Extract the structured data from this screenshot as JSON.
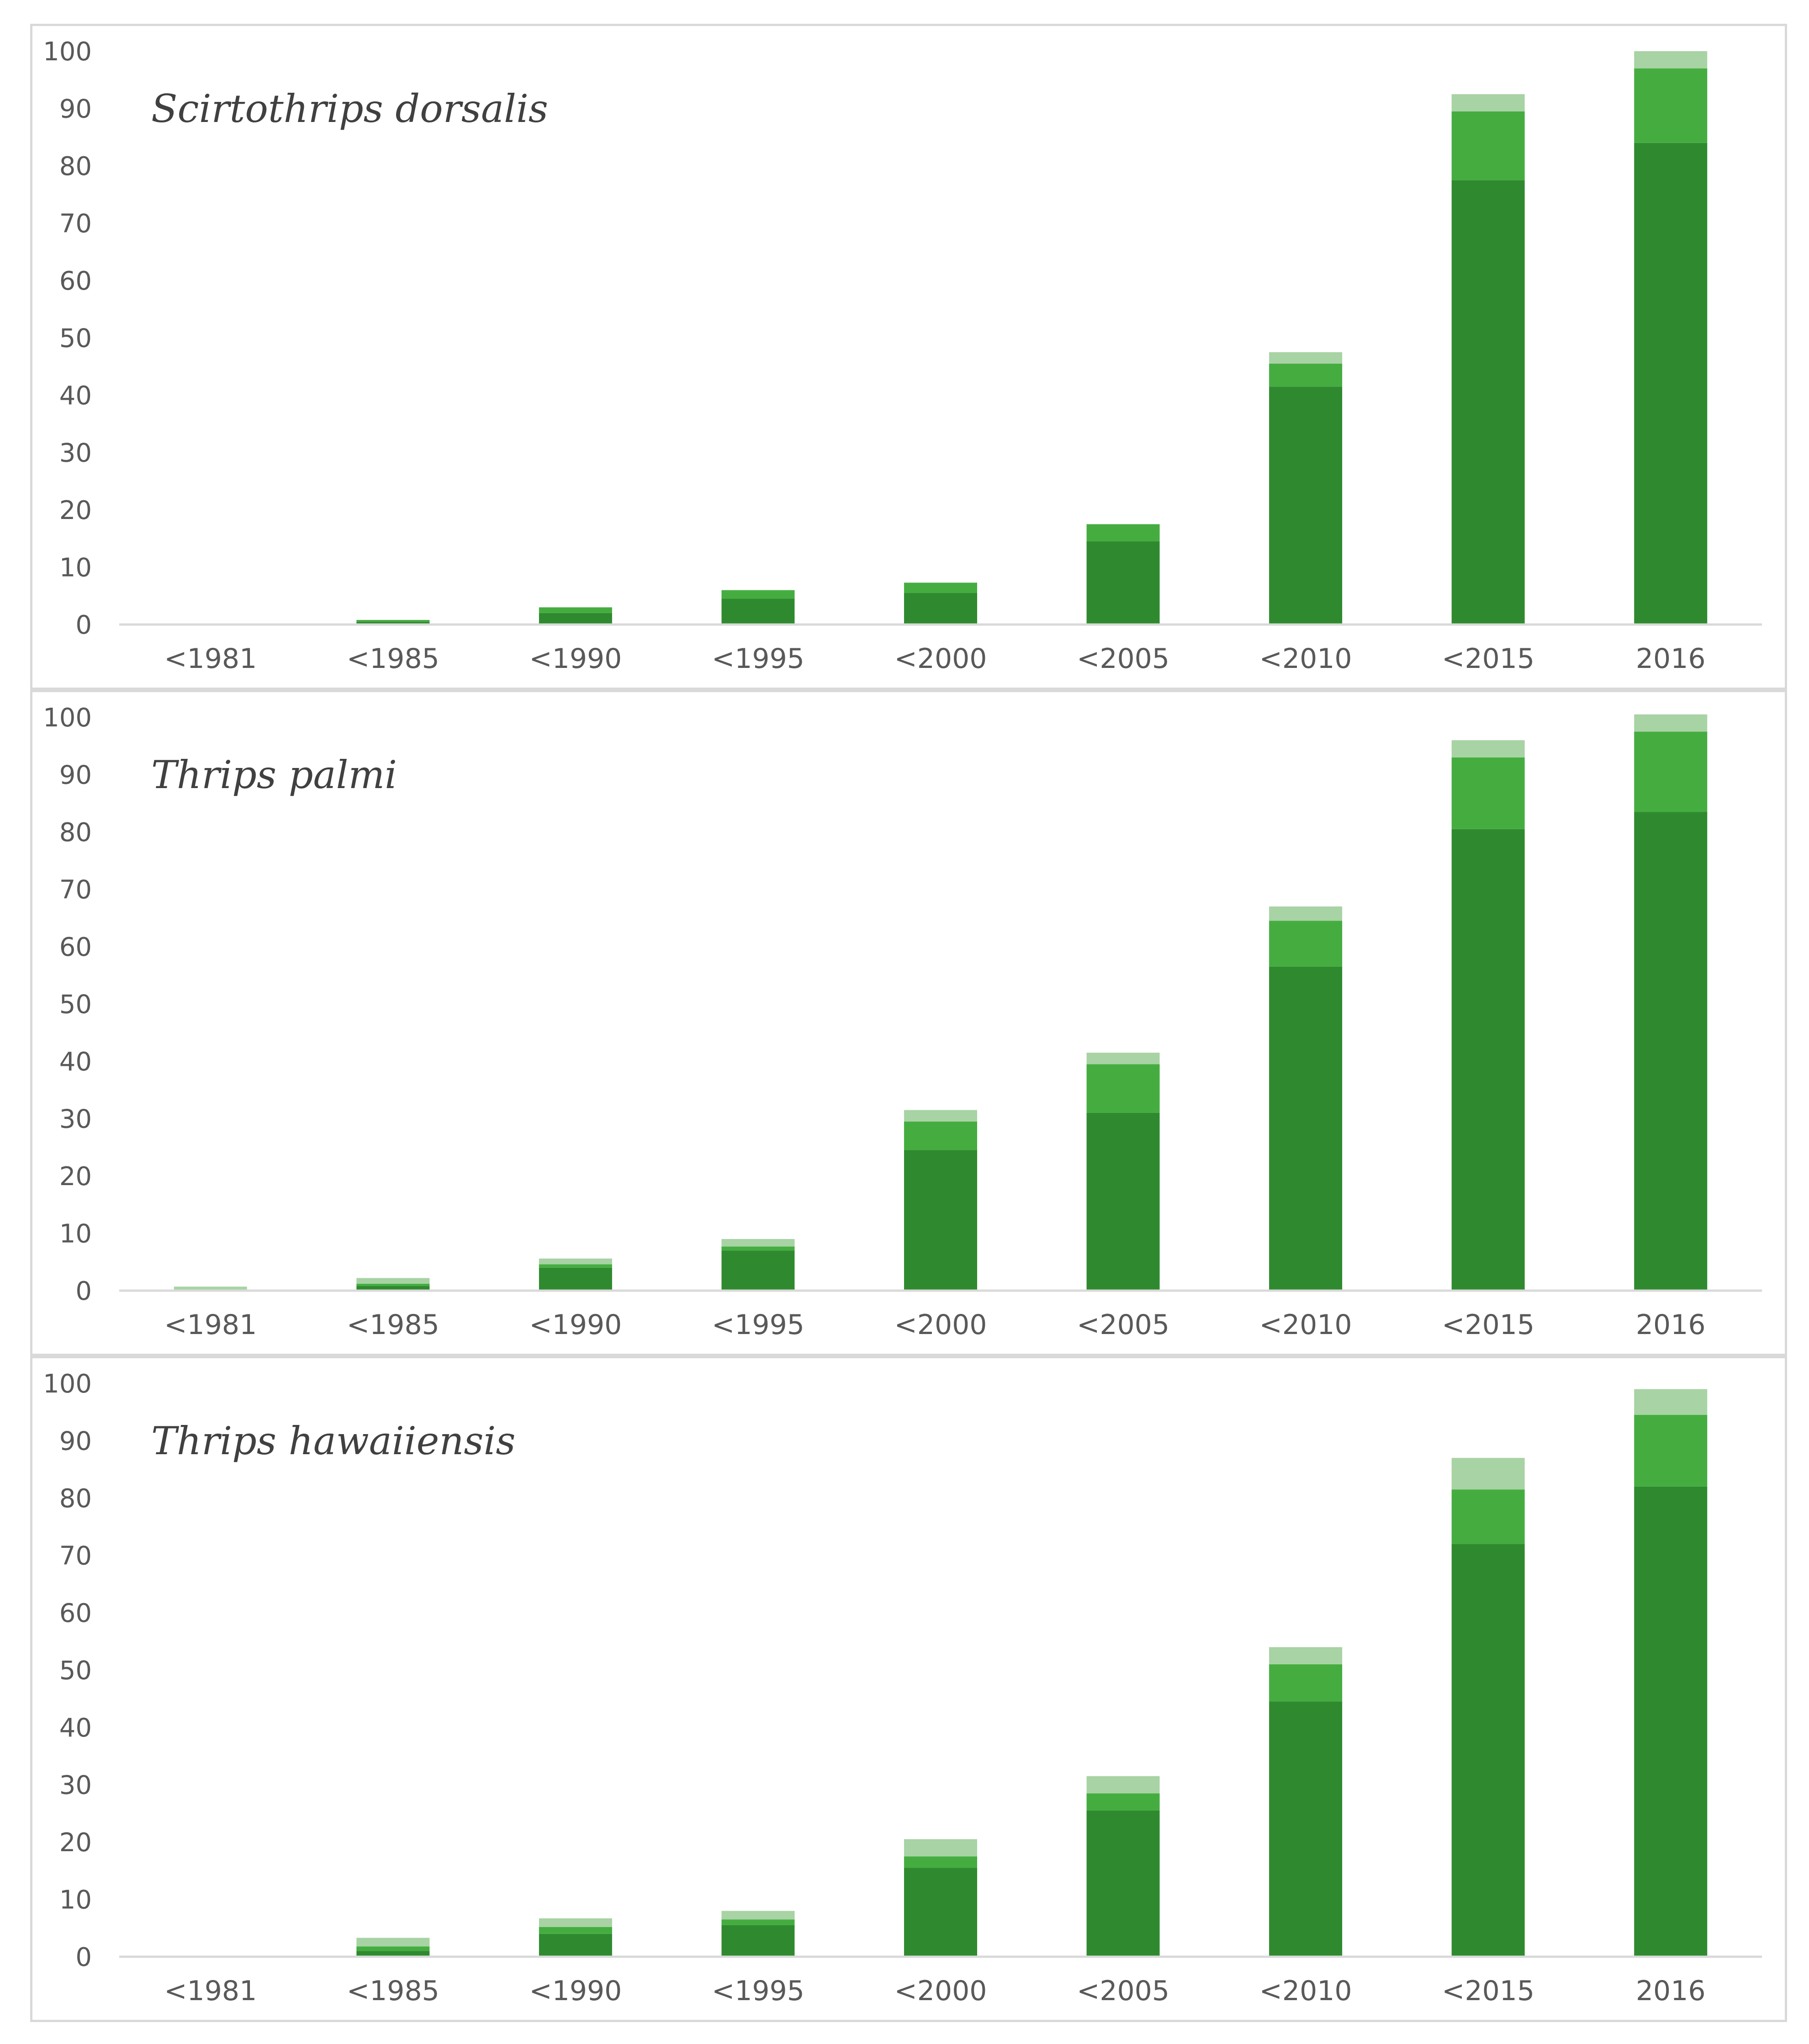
{
  "colors": {
    "dark": "#2f8a2f",
    "mid": "#45ad40",
    "light": "#a8d3a4",
    "axis": "#d9d9d9",
    "tick_text": "#595959",
    "title_text": "#404040"
  },
  "chart_data": [
    {
      "type": "bar",
      "stacked": true,
      "title": "Scirtothrips dorsalis",
      "categories": [
        "<1981",
        "<1985",
        "<1990",
        "<1995",
        "<2000",
        "<2005",
        "<2010",
        "<2015",
        "2016"
      ],
      "series": [
        {
          "name": "dark",
          "values": [
            0,
            0.5,
            2,
            4.5,
            5.5,
            14.5,
            41.5,
            77.5,
            84
          ]
        },
        {
          "name": "mid",
          "values": [
            0,
            0.3,
            1,
            1.5,
            1.8,
            3,
            4,
            12,
            13
          ]
        },
        {
          "name": "light",
          "values": [
            0,
            0,
            0,
            0,
            0,
            0,
            2,
            3,
            3
          ]
        }
      ],
      "yticks": [
        "0",
        "10",
        "20",
        "30",
        "40",
        "50",
        "60",
        "70",
        "80",
        "90",
        "100"
      ],
      "ylim": [
        0,
        100
      ],
      "xlabel": "",
      "ylabel": ""
    },
    {
      "type": "bar",
      "stacked": true,
      "title": "Thrips palmi",
      "categories": [
        "<1981",
        "<1985",
        "<1990",
        "<1995",
        "<2000",
        "<2005",
        "<2010",
        "<2015",
        "2016"
      ],
      "series": [
        {
          "name": "dark",
          "values": [
            0,
            0.8,
            4,
            7,
            24.5,
            31,
            56.5,
            80.5,
            83.5
          ]
        },
        {
          "name": "mid",
          "values": [
            0,
            0.4,
            0.6,
            0.7,
            5,
            8.5,
            8,
            12.5,
            14
          ]
        },
        {
          "name": "light",
          "values": [
            0.7,
            1,
            1,
            1.3,
            2,
            2,
            2.5,
            3,
            3
          ]
        }
      ],
      "yticks": [
        "0",
        "10",
        "20",
        "30",
        "40",
        "50",
        "60",
        "70",
        "80",
        "90",
        "100"
      ],
      "ylim": [
        0,
        100
      ],
      "xlabel": "",
      "ylabel": ""
    },
    {
      "type": "bar",
      "stacked": true,
      "title": "Thrips hawaiiensis",
      "categories": [
        "<1981",
        "<1985",
        "<1990",
        "<1995",
        "<2000",
        "<2005",
        "<2010",
        "<2015",
        "2016"
      ],
      "series": [
        {
          "name": "dark",
          "values": [
            0,
            1,
            4,
            5.5,
            15.5,
            25.5,
            44.5,
            72,
            82
          ]
        },
        {
          "name": "mid",
          "values": [
            0,
            0.8,
            1.2,
            1,
            2,
            3,
            6.5,
            9.5,
            12.5
          ]
        },
        {
          "name": "light",
          "values": [
            0,
            1.5,
            1.5,
            1.5,
            3,
            3,
            3,
            5.5,
            4.5
          ]
        }
      ],
      "yticks": [
        "0",
        "10",
        "20",
        "30",
        "40",
        "50",
        "60",
        "70",
        "80",
        "90",
        "100"
      ],
      "ylim": [
        0,
        100
      ],
      "xlabel": "",
      "ylabel": ""
    }
  ]
}
